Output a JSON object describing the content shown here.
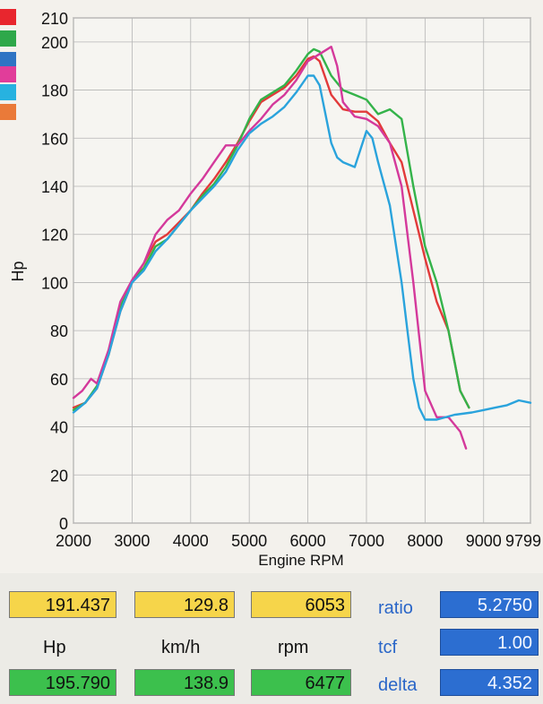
{
  "chart_data": {
    "type": "line",
    "title": "",
    "xlabel": "Engine RPM",
    "ylabel": "Hp",
    "xlim": [
      2000,
      9799
    ],
    "ylim": [
      0,
      210
    ],
    "x_ticks": [
      "2000",
      "3000",
      "4000",
      "5000",
      "6000",
      "7000",
      "8000",
      "9000",
      "9799"
    ],
    "y_ticks": [
      "0",
      "20",
      "40",
      "60",
      "80",
      "100",
      "120",
      "140",
      "160",
      "180",
      "200",
      "210"
    ],
    "grid": true,
    "series": [
      {
        "color": "#e23a3a",
        "x": [
          2000,
          2200,
          2400,
          2600,
          2800,
          3000,
          3200,
          3400,
          3600,
          3800,
          4000,
          4200,
          4400,
          4600,
          4800,
          5000,
          5200,
          5400,
          5600,
          5800,
          6000,
          6100,
          6200,
          6400,
          6600,
          6800,
          7000,
          7200,
          7400,
          7600,
          7800,
          8000,
          8200,
          8400,
          8600,
          8750
        ],
        "y": [
          48,
          50,
          56,
          70,
          88,
          100,
          108,
          117,
          120,
          125,
          130,
          137,
          143,
          150,
          158,
          167,
          175,
          178,
          181,
          186,
          193,
          194,
          192,
          178,
          172,
          171,
          171,
          167,
          158,
          150,
          130,
          110,
          92,
          80,
          55,
          48
        ]
      },
      {
        "color": "#34b34a",
        "x": [
          2000,
          2200,
          2400,
          2600,
          2800,
          3000,
          3200,
          3400,
          3600,
          3800,
          4000,
          4200,
          4400,
          4600,
          4800,
          5000,
          5200,
          5400,
          5600,
          5800,
          6000,
          6100,
          6200,
          6400,
          6600,
          6800,
          7000,
          7200,
          7400,
          7600,
          7800,
          8000,
          8200,
          8400,
          8600,
          8750
        ],
        "y": [
          47,
          50,
          57,
          70,
          90,
          100,
          106,
          115,
          118,
          124,
          130,
          136,
          141,
          148,
          157,
          168,
          176,
          179,
          182,
          188,
          195,
          197,
          196,
          186,
          180,
          178,
          176,
          170,
          172,
          168,
          140,
          115,
          100,
          80,
          55,
          48
        ]
      },
      {
        "color": "#d4399b",
        "x": [
          2000,
          2150,
          2300,
          2400,
          2600,
          2800,
          3000,
          3200,
          3400,
          3600,
          3800,
          4000,
          4200,
          4400,
          4600,
          4800,
          5000,
          5200,
          5400,
          5600,
          5800,
          6000,
          6200,
          6400,
          6500,
          6600,
          6800,
          7000,
          7200,
          7400,
          7600,
          7800,
          8000,
          8200,
          8400,
          8600,
          8700
        ],
        "y": [
          52,
          55,
          60,
          58,
          72,
          92,
          101,
          108,
          120,
          126,
          130,
          137,
          143,
          150,
          157,
          157,
          163,
          168,
          174,
          178,
          184,
          192,
          195,
          198,
          190,
          175,
          169,
          168,
          165,
          158,
          140,
          100,
          55,
          44,
          44,
          38,
          31
        ]
      },
      {
        "color": "#2aa3dc",
        "x": [
          2000,
          2200,
          2400,
          2600,
          2800,
          3000,
          3200,
          3400,
          3600,
          3800,
          4000,
          4200,
          4400,
          4600,
          4800,
          5000,
          5200,
          5400,
          5600,
          5800,
          6000,
          6100,
          6200,
          6300,
          6400,
          6500,
          6600,
          6800,
          7000,
          7100,
          7200,
          7400,
          7600,
          7700,
          7800,
          7900,
          8000,
          8200,
          8500,
          8800,
          9000,
          9200,
          9400,
          9600,
          9799
        ],
        "y": [
          46,
          50,
          56,
          70,
          88,
          100,
          105,
          113,
          118,
          124,
          130,
          135,
          140,
          146,
          155,
          162,
          166,
          169,
          173,
          179,
          186,
          186,
          182,
          170,
          158,
          152,
          150,
          148,
          163,
          160,
          150,
          132,
          100,
          80,
          60,
          48,
          43,
          43,
          45,
          46,
          47,
          48,
          49,
          51,
          50
        ]
      }
    ]
  },
  "readout": {
    "row1": [
      "191.437",
      "129.8",
      "6053"
    ],
    "units": [
      "Hp",
      "km/h",
      "rpm"
    ],
    "row2": [
      "195.790",
      "138.9",
      "6477"
    ],
    "meters": [
      {
        "label": "ratio",
        "value": "5.2750"
      },
      {
        "label": "tcf",
        "value": "1.00"
      },
      {
        "label": "delta",
        "value": "4.352"
      }
    ]
  },
  "legend_colors": [
    "#e8262e",
    "#2ea84a",
    "#2f74c4",
    "#e13d9a",
    "#27b2e0",
    "#ea7a39"
  ]
}
